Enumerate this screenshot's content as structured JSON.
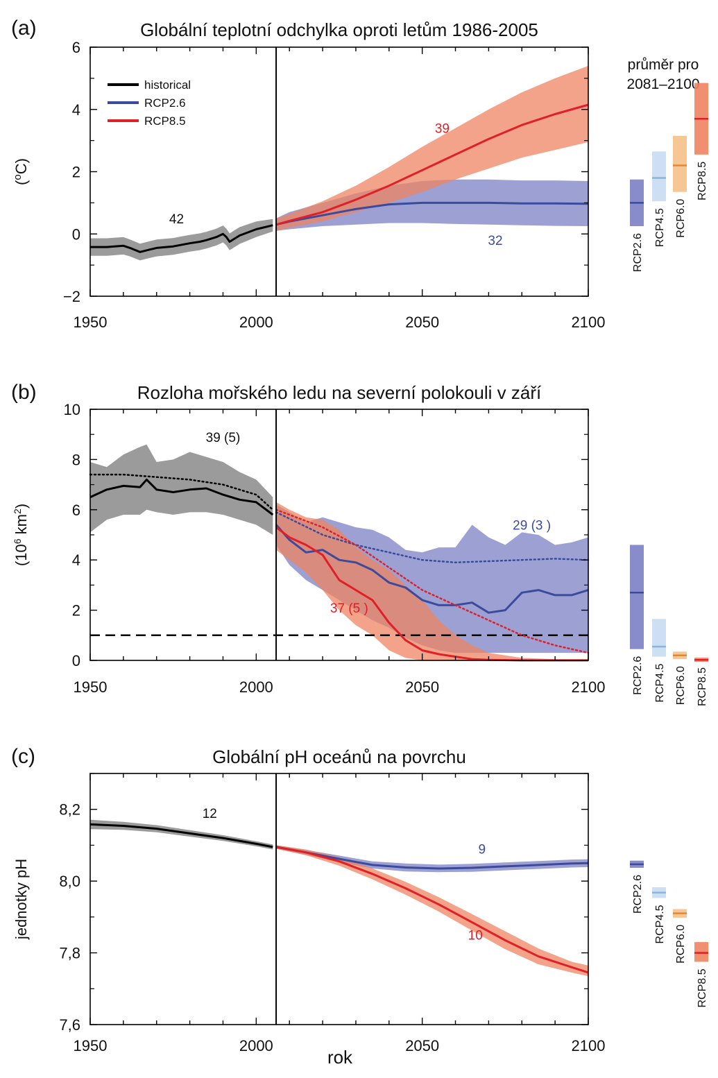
{
  "colors": {
    "historical": "#000000",
    "historical_band": "#8a8a8a",
    "rcp26": "#3b4a9c",
    "rcp26_band": "#7b80c4",
    "rcp45": "#8ab4e0",
    "rcp45_band": "#c8dcf2",
    "rcp60": "#e8862e",
    "rcp60_band": "#f6c08a",
    "rcp85": "#e01f26",
    "rcp85_band": "#ee8462"
  },
  "side_title": [
    "průměr pro",
    "2081–2100"
  ],
  "xaxis_label": "rok",
  "chart_data": [
    {
      "type": "line",
      "panel": "(a)",
      "title": "Globální teplotní odchylka oproti letům 1986-2005",
      "xlabel": "",
      "ylabel": "(oC)",
      "xlim": [
        1950,
        2100
      ],
      "ylim": [
        -2,
        6
      ],
      "xticks": [
        1950,
        2000,
        2050,
        2100
      ],
      "yticks": [
        -2,
        0,
        2,
        4,
        6
      ],
      "ytick_labels": [
        "−2",
        "0",
        "2",
        "4",
        "6"
      ],
      "divider_year": 2006,
      "legend": {
        "placement": "top-left",
        "entries": [
          {
            "label": "historical",
            "series": "historical"
          },
          {
            "label": "RCP2.6",
            "series": "rcp26"
          },
          {
            "label": "RCP8.5",
            "series": "rcp85"
          }
        ]
      },
      "series": [
        {
          "name": "historical",
          "key": "historical",
          "x": [
            1950,
            1955,
            1960,
            1962,
            1965,
            1968,
            1970,
            1975,
            1980,
            1983,
            1985,
            1988,
            1990,
            1991,
            1992,
            1995,
            2000,
            2005
          ],
          "y": [
            -0.42,
            -0.42,
            -0.38,
            -0.45,
            -0.58,
            -0.5,
            -0.45,
            -0.4,
            -0.3,
            -0.25,
            -0.2,
            -0.1,
            0.0,
            -0.1,
            -0.25,
            -0.05,
            0.15,
            0.28
          ],
          "lo": [
            -0.7,
            -0.7,
            -0.66,
            -0.72,
            -0.85,
            -0.77,
            -0.72,
            -0.67,
            -0.57,
            -0.52,
            -0.47,
            -0.37,
            -0.27,
            -0.37,
            -0.52,
            -0.32,
            -0.1,
            0.08
          ],
          "hi": [
            -0.14,
            -0.14,
            -0.1,
            -0.18,
            -0.31,
            -0.23,
            -0.18,
            -0.13,
            -0.03,
            0.02,
            0.07,
            0.17,
            0.27,
            0.17,
            0.02,
            0.22,
            0.4,
            0.48
          ]
        },
        {
          "name": "RCP2.6",
          "key": "rcp26",
          "x": [
            2006,
            2010,
            2020,
            2030,
            2040,
            2050,
            2060,
            2070,
            2080,
            2090,
            2100
          ],
          "y": [
            0.3,
            0.4,
            0.6,
            0.8,
            0.95,
            1.0,
            1.0,
            1.0,
            0.98,
            0.98,
            0.97
          ],
          "lo": [
            0.1,
            0.15,
            0.25,
            0.3,
            0.35,
            0.35,
            0.32,
            0.3,
            0.28,
            0.26,
            0.25
          ],
          "hi": [
            0.5,
            0.7,
            1.0,
            1.3,
            1.55,
            1.7,
            1.75,
            1.75,
            1.72,
            1.72,
            1.7
          ]
        },
        {
          "name": "RCP8.5",
          "key": "rcp85",
          "x": [
            2006,
            2010,
            2020,
            2030,
            2040,
            2050,
            2060,
            2070,
            2080,
            2090,
            2100
          ],
          "y": [
            0.3,
            0.42,
            0.7,
            1.1,
            1.55,
            2.05,
            2.55,
            3.05,
            3.5,
            3.85,
            4.15
          ],
          "lo": [
            0.1,
            0.2,
            0.4,
            0.7,
            1.0,
            1.35,
            1.75,
            2.1,
            2.45,
            2.7,
            2.95
          ],
          "hi": [
            0.5,
            0.65,
            1.05,
            1.55,
            2.15,
            2.8,
            3.4,
            4.0,
            4.55,
            5.0,
            5.4
          ]
        }
      ],
      "annotations": [
        {
          "text": "42",
          "x": 1976,
          "y": 0.5,
          "series": "historical"
        },
        {
          "text": "39",
          "x": 2056,
          "y": 3.4,
          "series": "rcp85"
        },
        {
          "text": "32",
          "x": 2072,
          "y": -0.2,
          "series": "rcp26"
        }
      ],
      "bars": {
        "ylim": [
          -2,
          6
        ],
        "items": [
          {
            "label": "RCP2.6",
            "key": "rcp26",
            "mean": 1.0,
            "lo": 0.25,
            "hi": 1.75
          },
          {
            "label": "RCP4.5",
            "key": "rcp45",
            "mean": 1.8,
            "lo": 1.05,
            "hi": 2.65
          },
          {
            "label": "RCP6.0",
            "key": "rcp60",
            "mean": 2.2,
            "lo": 1.35,
            "hi": 3.15
          },
          {
            "label": "RCP8.5",
            "key": "rcp85",
            "mean": 3.7,
            "lo": 2.55,
            "hi": 4.85
          }
        ]
      }
    },
    {
      "type": "line",
      "panel": "(b)",
      "title": "Rozloha mořského ledu na severní polokouli v září",
      "xlabel": "",
      "ylabel": "(10⁶ km²)",
      "xlim": [
        1950,
        2100
      ],
      "ylim": [
        0,
        10
      ],
      "xticks": [
        1950,
        2000,
        2050,
        2100
      ],
      "yticks": [
        0,
        2,
        4,
        6,
        8,
        10
      ],
      "ytick_labels": [
        "0",
        "2",
        "4",
        "6",
        "8",
        "10"
      ],
      "divider_year": 2006,
      "threshold_y": 1.0,
      "series": [
        {
          "name": "historical",
          "key": "historical",
          "x": [
            1950,
            1955,
            1960,
            1965,
            1967,
            1970,
            1975,
            1980,
            1985,
            1990,
            1995,
            2000,
            2005
          ],
          "y": [
            6.5,
            6.8,
            6.95,
            6.9,
            7.2,
            6.8,
            6.7,
            6.8,
            6.85,
            6.6,
            6.4,
            6.3,
            5.8
          ],
          "lo": [
            5.1,
            5.6,
            5.8,
            5.8,
            6.0,
            5.9,
            5.8,
            5.9,
            5.9,
            5.8,
            5.6,
            5.4,
            5.0
          ],
          "hi": [
            7.9,
            7.7,
            8.2,
            8.5,
            8.6,
            7.9,
            8.0,
            8.3,
            8.1,
            7.9,
            7.5,
            7.2,
            6.5
          ]
        },
        {
          "name": "historical dotted",
          "key": "historical",
          "dotted": true,
          "x": [
            1950,
            1960,
            1970,
            1980,
            1990,
            2000,
            2005
          ],
          "y": [
            7.4,
            7.4,
            7.3,
            7.2,
            7.0,
            6.6,
            6.0
          ]
        },
        {
          "name": "RCP2.6",
          "key": "rcp26",
          "x": [
            2006,
            2010,
            2015,
            2020,
            2025,
            2030,
            2035,
            2040,
            2045,
            2050,
            2055,
            2060,
            2065,
            2070,
            2075,
            2080,
            2085,
            2090,
            2095,
            2100
          ],
          "y": [
            5.4,
            4.8,
            4.3,
            4.4,
            4.0,
            3.9,
            3.6,
            3.1,
            2.9,
            2.4,
            2.2,
            2.2,
            2.3,
            1.9,
            2.0,
            2.7,
            2.8,
            2.6,
            2.6,
            2.8
          ],
          "lo": [
            4.6,
            3.8,
            3.2,
            2.8,
            2.4,
            2.0,
            1.6,
            1.3,
            0.9,
            0.6,
            0.4,
            0.3,
            0.3,
            0.3,
            0.3,
            0.3,
            0.3,
            0.3,
            0.3,
            0.3
          ],
          "hi": [
            6.2,
            5.9,
            5.5,
            5.7,
            5.5,
            5.3,
            5.2,
            4.9,
            4.4,
            4.3,
            4.5,
            4.5,
            5.4,
            4.9,
            4.6,
            5.1,
            5.0,
            4.6,
            4.7,
            4.9
          ]
        },
        {
          "name": "RCP2.6 dotted",
          "key": "rcp26",
          "dotted": true,
          "x": [
            2006,
            2020,
            2030,
            2040,
            2050,
            2060,
            2070,
            2080,
            2090,
            2100
          ],
          "y": [
            5.9,
            5.0,
            4.6,
            4.3,
            4.0,
            3.9,
            3.95,
            4.0,
            4.05,
            4.0
          ]
        },
        {
          "name": "RCP8.5",
          "key": "rcp85",
          "x": [
            2006,
            2010,
            2015,
            2020,
            2025,
            2030,
            2035,
            2040,
            2045,
            2050,
            2055,
            2060,
            2065,
            2070,
            2080,
            2090,
            2100
          ],
          "y": [
            5.3,
            4.9,
            4.6,
            4.2,
            3.2,
            2.8,
            2.4,
            1.5,
            0.8,
            0.4,
            0.25,
            0.15,
            0.05,
            0.02,
            0.0,
            0.0,
            0.0
          ],
          "lo": [
            4.4,
            4.0,
            3.5,
            2.8,
            2.0,
            1.4,
            1.0,
            0.4,
            0.1,
            0.0,
            0.0,
            0.0,
            0.0,
            0.0,
            0.0,
            0.0,
            0.0
          ],
          "hi": [
            6.3,
            6.0,
            5.7,
            5.6,
            5.2,
            4.5,
            4.0,
            3.6,
            3.0,
            2.4,
            1.6,
            1.0,
            0.6,
            0.3,
            0.1,
            0.05,
            0.05
          ]
        },
        {
          "name": "RCP8.5 dotted",
          "key": "rcp85",
          "dotted": true,
          "x": [
            2006,
            2020,
            2030,
            2040,
            2050,
            2060,
            2070,
            2080,
            2090,
            2100
          ],
          "y": [
            6.0,
            5.3,
            4.6,
            3.7,
            2.8,
            2.2,
            1.6,
            1.0,
            0.6,
            0.3
          ]
        }
      ],
      "annotations": [
        {
          "text": "39 (5)",
          "x": 1990,
          "y": 8.9,
          "series": "historical"
        },
        {
          "text": "29 (3 )",
          "x": 2083,
          "y": 5.4,
          "series": "rcp26"
        },
        {
          "text": "37 (5 )",
          "x": 2028,
          "y": 2.1,
          "series": "rcp85"
        }
      ],
      "bars": {
        "ylim": [
          0,
          10
        ],
        "items": [
          {
            "label": "RCP2.6",
            "key": "rcp26",
            "mean": 2.7,
            "lo": 0.45,
            "hi": 4.6
          },
          {
            "label": "RCP4.5",
            "key": "rcp45",
            "mean": 0.55,
            "lo": 0.15,
            "hi": 1.65
          },
          {
            "label": "RCP6.0",
            "key": "rcp60",
            "mean": 0.2,
            "lo": 0.05,
            "hi": 0.35
          },
          {
            "label": "RCP8.5",
            "key": "rcp85",
            "mean": 0.02,
            "lo": 0.0,
            "hi": 0.05
          }
        ]
      }
    },
    {
      "type": "line",
      "panel": "(c)",
      "title": "Globální pH oceánů na povrchu",
      "xlabel": "rok",
      "ylabel": "jednotky pH",
      "xlim": [
        1950,
        2100
      ],
      "ylim": [
        7.6,
        8.3
      ],
      "xticks": [
        1950,
        2000,
        2050,
        2100
      ],
      "yticks": [
        7.6,
        7.8,
        8.0,
        8.2
      ],
      "ytick_labels": [
        "7,6",
        "7,8",
        "8,0",
        "8,2"
      ],
      "divider_year": 2006,
      "series": [
        {
          "name": "historical",
          "key": "historical",
          "x": [
            1950,
            1960,
            1970,
            1980,
            1990,
            2000,
            2005
          ],
          "y": [
            8.158,
            8.154,
            8.146,
            8.133,
            8.12,
            8.104,
            8.095
          ],
          "lo": [
            8.145,
            8.143,
            8.136,
            8.124,
            8.112,
            8.097,
            8.088
          ],
          "hi": [
            8.171,
            8.165,
            8.156,
            8.142,
            8.128,
            8.111,
            8.102
          ]
        },
        {
          "name": "RCP2.6",
          "key": "rcp26",
          "x": [
            2006,
            2015,
            2025,
            2035,
            2045,
            2055,
            2065,
            2075,
            2085,
            2095,
            2100
          ],
          "y": [
            8.095,
            8.08,
            8.062,
            8.045,
            8.038,
            8.035,
            8.037,
            8.041,
            8.045,
            8.049,
            8.05
          ],
          "lo": [
            8.09,
            8.073,
            8.053,
            8.035,
            8.027,
            8.025,
            8.026,
            8.03,
            8.034,
            8.038,
            8.039
          ],
          "hi": [
            8.1,
            8.087,
            8.071,
            8.055,
            8.049,
            8.046,
            8.048,
            8.052,
            8.056,
            8.06,
            8.061
          ]
        },
        {
          "name": "RCP8.5",
          "key": "rcp85",
          "x": [
            2006,
            2015,
            2025,
            2035,
            2045,
            2055,
            2065,
            2075,
            2085,
            2095,
            2100
          ],
          "y": [
            8.095,
            8.08,
            8.055,
            8.02,
            7.98,
            7.935,
            7.885,
            7.835,
            7.79,
            7.76,
            7.745
          ],
          "lo": [
            8.09,
            8.072,
            8.043,
            8.005,
            7.962,
            7.915,
            7.862,
            7.81,
            7.768,
            7.745,
            7.735
          ],
          "hi": [
            8.1,
            8.088,
            8.067,
            8.035,
            7.998,
            7.955,
            7.908,
            7.86,
            7.812,
            7.775,
            7.765
          ]
        }
      ],
      "annotations": [
        {
          "text": "12",
          "x": 1986,
          "y": 8.19,
          "series": "historical"
        },
        {
          "text": "9",
          "x": 2068,
          "y": 8.09,
          "series": "rcp26"
        },
        {
          "text": "10",
          "x": 2066,
          "y": 7.85,
          "series": "rcp85"
        }
      ],
      "bars": {
        "ylim": [
          7.6,
          8.3
        ],
        "items": [
          {
            "label": "RCP2.6",
            "key": "rcp26",
            "mean": 8.047,
            "lo": 8.037,
            "hi": 8.057
          },
          {
            "label": "RCP4.5",
            "key": "rcp45",
            "mean": 7.968,
            "lo": 7.953,
            "hi": 7.983
          },
          {
            "label": "RCP6.0",
            "key": "rcp60",
            "mean": 7.91,
            "lo": 7.898,
            "hi": 7.922
          },
          {
            "label": "RCP8.5",
            "key": "rcp85",
            "mean": 7.8,
            "lo": 7.775,
            "hi": 7.83
          }
        ]
      }
    }
  ]
}
